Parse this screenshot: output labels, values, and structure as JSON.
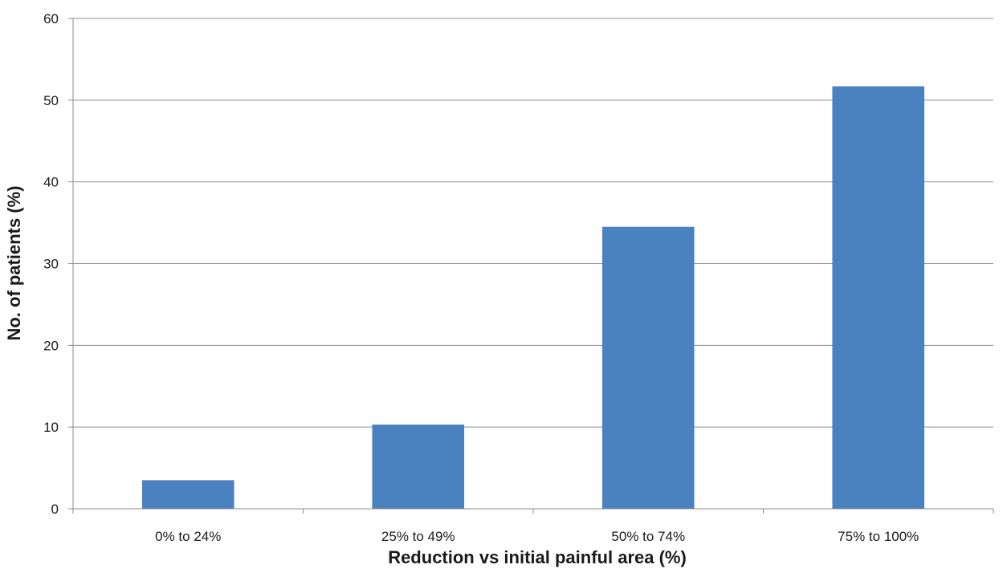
{
  "chart_data": {
    "type": "bar",
    "title": "",
    "xlabel": "Reduction vs initial painful area (%)",
    "ylabel": "No. of patients (%)",
    "categories": [
      "0% to 24%",
      "25% to 49%",
      "50% to 74%",
      "75% to 100%"
    ],
    "values": [
      3.5,
      10.3,
      34.5,
      51.7
    ],
    "ylim": [
      0,
      60
    ],
    "yticks": [
      0,
      10,
      20,
      30,
      40,
      50,
      60
    ],
    "grid": true,
    "legend": "none",
    "colors": {
      "bar": "#4a81bf",
      "grid": "#8c8c8c",
      "axis": "#8c8c8c"
    }
  }
}
